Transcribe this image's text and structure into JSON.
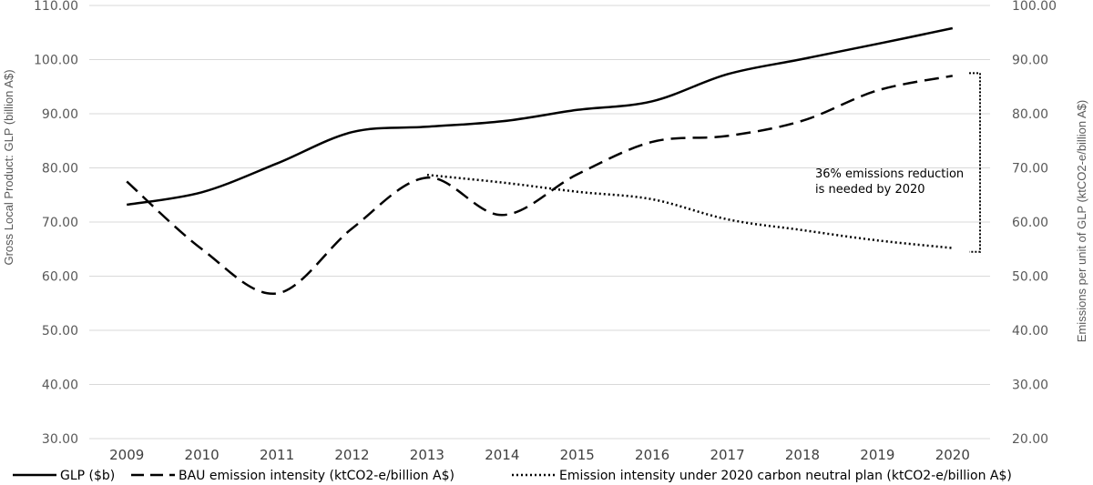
{
  "chart_data": {
    "type": "line",
    "x": [
      "2009",
      "2010",
      "2011",
      "2012",
      "2013",
      "2014",
      "2015",
      "2016",
      "2017",
      "2018",
      "2019",
      "2020"
    ],
    "y_left": {
      "label": "Gross Local Product: GLP (billion A$)",
      "ticks": [
        "30.00",
        "40.00",
        "50.00",
        "60.00",
        "70.00",
        "80.00",
        "90.00",
        "100.00",
        "110.00"
      ],
      "range": [
        30,
        110
      ]
    },
    "y_right": {
      "label": "Emissions per unit of GLP (ktCO2-e/billion A$)",
      "ticks": [
        "20.00",
        "30.00",
        "40.00",
        "50.00",
        "60.00",
        "70.00",
        "80.00",
        "90.00",
        "100.00"
      ],
      "range": [
        20,
        100
      ]
    },
    "series": [
      {
        "name": "GLP ($b)",
        "axis": "left",
        "style": "solid",
        "values": [
          73.2,
          75.5,
          80.8,
          86.6,
          87.6,
          88.6,
          90.7,
          92.3,
          97.3,
          100.1,
          102.9,
          105.8
        ]
      },
      {
        "name": "BAU emission intensity (ktCO2-e/billion A$)",
        "axis": "right",
        "style": "dashed",
        "values": [
          67.5,
          55.0,
          46.8,
          58.8,
          68.2,
          61.3,
          68.8,
          74.8,
          75.9,
          78.7,
          84.3,
          87.0
        ]
      },
      {
        "name": "Emission intensity under 2020 carbon neutral plan (ktCO2-e/billion A$)",
        "axis": "right",
        "style": "dotted",
        "values": [
          null,
          null,
          null,
          null,
          68.7,
          67.3,
          65.6,
          64.2,
          60.5,
          58.5,
          56.6,
          55.2
        ]
      }
    ],
    "annotation": {
      "lines": [
        "36% emissions reduction",
        "is needed by 2020"
      ],
      "bracket_from": 87.5,
      "bracket_to": 54.5,
      "axis": "right"
    },
    "legend_position": "bottom",
    "grid": true
  }
}
